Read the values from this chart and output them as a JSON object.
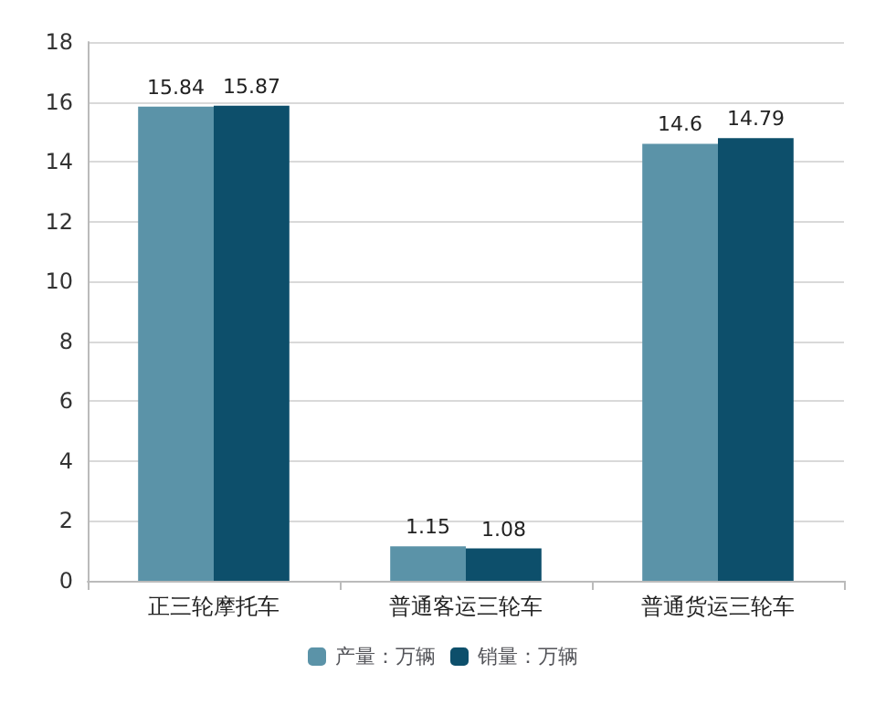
{
  "chart_data": {
    "type": "bar",
    "categories": [
      "正三轮摩托车",
      "普通客运三轮车",
      "普通货运三轮车"
    ],
    "series": [
      {
        "name": "产量：万辆",
        "color": "#5b93a8",
        "values": [
          15.84,
          1.15,
          14.6
        ]
      },
      {
        "name": "销量：万辆",
        "color": "#0d4f6b",
        "values": [
          15.87,
          1.08,
          14.79
        ]
      }
    ],
    "ylim": [
      0,
      18
    ],
    "yticks": [
      0,
      2,
      4,
      6,
      8,
      10,
      12,
      14,
      16,
      18
    ],
    "grid": "y",
    "legend": "bottom",
    "data_labels": true
  }
}
